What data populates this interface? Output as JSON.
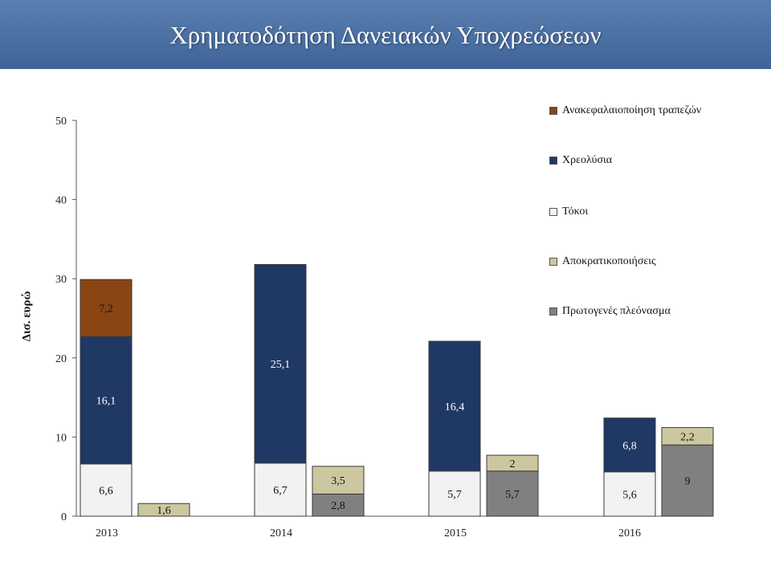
{
  "slide": {
    "title": "Χρηματοδότηση Δανειακών Υποχρεώσεων"
  },
  "chart_data": {
    "type": "bar",
    "stacked": true,
    "ylabel": "Δισ. ευρώ",
    "xlabel": "",
    "ylim": [
      0,
      50
    ],
    "yticks": [
      0,
      10,
      20,
      30,
      40,
      50
    ],
    "categories": [
      "2013",
      "2014",
      "2015",
      "2016"
    ],
    "legend_position": "right",
    "series": [
      {
        "name": "Ανακεφαλαιοποίηση τραπεζών",
        "stack": "needs",
        "color": "#8b4513",
        "values": [
          7.2,
          0,
          0,
          0
        ],
        "labels": [
          "7,2",
          "",
          "",
          ""
        ]
      },
      {
        "name": "Χρεολύσια",
        "stack": "needs",
        "color": "#1f3864",
        "values": [
          16.1,
          25.1,
          16.4,
          6.8
        ],
        "labels": [
          "16,1",
          "25,1",
          "16,4",
          "6,8"
        ]
      },
      {
        "name": "Τόκοι",
        "stack": "needs",
        "color": "#f2f2f2",
        "values": [
          6.6,
          6.7,
          5.7,
          5.6
        ],
        "labels": [
          "6,6",
          "6,7",
          "5,7",
          "5,6"
        ]
      },
      {
        "name": "Αποκρατικοποιήσεις",
        "stack": "sources",
        "color": "#cdc7a0",
        "values": [
          1.6,
          3.5,
          2,
          2.2
        ],
        "labels": [
          "1,6",
          "3,5",
          "2",
          "2,2"
        ]
      },
      {
        "name": "Πρωτογενές πλεόνασμα",
        "stack": "sources",
        "color": "#808080",
        "values": [
          0,
          2.8,
          5.7,
          9
        ],
        "labels": [
          "",
          "2,8",
          "5,7",
          "9"
        ]
      }
    ]
  }
}
